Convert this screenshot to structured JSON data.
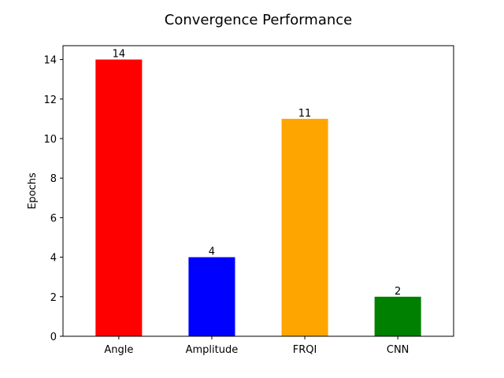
{
  "chart_data": {
    "type": "bar",
    "title": "Convergence Performance",
    "xlabel": "",
    "ylabel": "Epochs",
    "categories": [
      "Angle",
      "Amplitude",
      "FRQI",
      "CNN"
    ],
    "values": [
      14,
      4,
      11,
      2
    ],
    "colors": [
      "#ff0000",
      "#0000ff",
      "#ffa500",
      "#008000"
    ],
    "data_labels": [
      "14",
      "4",
      "11",
      "2"
    ],
    "ylim": [
      0,
      14.7
    ],
    "yticks": [
      0,
      2,
      4,
      6,
      8,
      10,
      12,
      14
    ],
    "grid": false,
    "legend": "none"
  }
}
